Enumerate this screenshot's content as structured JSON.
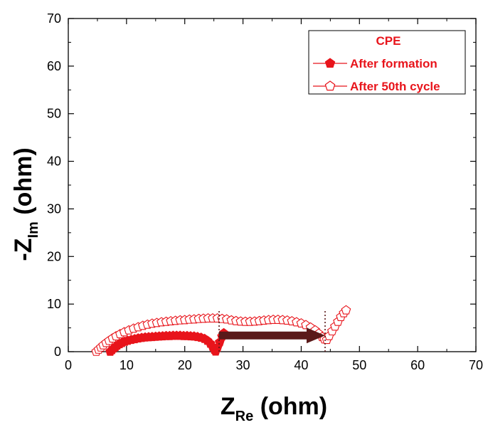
{
  "chart_data": {
    "type": "scatter",
    "xlabel": {
      "main": "Z",
      "sub": "Re",
      "unit": " (ohm)"
    },
    "ylabel": {
      "prefix": "-Z",
      "sub": "Im",
      "unit": " (ohm)"
    },
    "xlim": [
      0,
      70
    ],
    "ylim": [
      0,
      70
    ],
    "xticks": [
      0,
      10,
      20,
      30,
      40,
      50,
      60,
      70
    ],
    "yticks": [
      0,
      10,
      20,
      30,
      40,
      50,
      60,
      70
    ],
    "grid": false,
    "legend": {
      "placement": "top-right",
      "title": "CPE",
      "entries": [
        "After formation",
        "After 50th cycle"
      ]
    },
    "colors": {
      "series": "#e8141b",
      "arrow": "#5a1a1a",
      "marker_line": "#5a1a1a"
    },
    "series": [
      {
        "name": "After formation",
        "marker": "filled-pentagon",
        "points": [
          [
            7.2,
            0
          ],
          [
            7.5,
            0.35
          ],
          [
            7.8,
            0.7
          ],
          [
            8.1,
            1.0
          ],
          [
            8.4,
            1.3
          ],
          [
            8.8,
            1.6
          ],
          [
            9.2,
            1.85
          ],
          [
            9.7,
            2.1
          ],
          [
            10.2,
            2.3
          ],
          [
            10.8,
            2.5
          ],
          [
            11.4,
            2.65
          ],
          [
            12.0,
            2.8
          ],
          [
            12.6,
            2.9
          ],
          [
            13.2,
            3.0
          ],
          [
            13.8,
            3.05
          ],
          [
            14.4,
            3.1
          ],
          [
            15.0,
            3.15
          ],
          [
            15.6,
            3.2
          ],
          [
            16.2,
            3.25
          ],
          [
            16.8,
            3.3
          ],
          [
            17.4,
            3.3
          ],
          [
            18.0,
            3.35
          ],
          [
            18.6,
            3.35
          ],
          [
            19.2,
            3.35
          ],
          [
            19.8,
            3.3
          ],
          [
            20.4,
            3.3
          ],
          [
            21.0,
            3.25
          ],
          [
            21.6,
            3.2
          ],
          [
            22.2,
            3.1
          ],
          [
            22.8,
            2.95
          ],
          [
            23.4,
            2.7
          ],
          [
            23.9,
            2.3
          ],
          [
            24.4,
            1.7
          ],
          [
            24.8,
            1.0
          ],
          [
            25.1,
            0.4
          ],
          [
            25.3,
            0.05
          ],
          [
            25.6,
            0.8
          ],
          [
            26.0,
            2.0
          ],
          [
            26.4,
            3.2
          ],
          [
            26.7,
            3.9
          ]
        ]
      },
      {
        "name": "After 50th cycle",
        "marker": "open-pentagon",
        "points": [
          [
            4.8,
            0
          ],
          [
            5.2,
            0.45
          ],
          [
            5.6,
            0.9
          ],
          [
            6.0,
            1.35
          ],
          [
            6.5,
            1.85
          ],
          [
            7.0,
            2.3
          ],
          [
            7.6,
            2.8
          ],
          [
            8.2,
            3.25
          ],
          [
            8.9,
            3.7
          ],
          [
            9.6,
            4.1
          ],
          [
            10.4,
            4.5
          ],
          [
            11.2,
            4.85
          ],
          [
            12.0,
            5.15
          ],
          [
            12.8,
            5.45
          ],
          [
            13.6,
            5.7
          ],
          [
            14.4,
            5.9
          ],
          [
            15.2,
            6.05
          ],
          [
            16.0,
            6.2
          ],
          [
            16.8,
            6.3
          ],
          [
            17.6,
            6.4
          ],
          [
            18.4,
            6.5
          ],
          [
            19.2,
            6.6
          ],
          [
            20.0,
            6.65
          ],
          [
            20.8,
            6.75
          ],
          [
            21.6,
            6.8
          ],
          [
            22.4,
            6.9
          ],
          [
            23.2,
            6.95
          ],
          [
            24.0,
            7.0
          ],
          [
            24.8,
            7.0
          ],
          [
            25.6,
            7.0
          ],
          [
            26.4,
            6.9
          ],
          [
            27.2,
            6.8
          ],
          [
            28.0,
            6.6
          ],
          [
            28.8,
            6.45
          ],
          [
            29.6,
            6.35
          ],
          [
            30.4,
            6.3
          ],
          [
            31.2,
            6.3
          ],
          [
            32.0,
            6.35
          ],
          [
            32.8,
            6.45
          ],
          [
            33.6,
            6.55
          ],
          [
            34.4,
            6.65
          ],
          [
            35.2,
            6.7
          ],
          [
            36.0,
            6.7
          ],
          [
            36.8,
            6.65
          ],
          [
            37.6,
            6.55
          ],
          [
            38.4,
            6.4
          ],
          [
            39.2,
            6.2
          ],
          [
            40.0,
            5.95
          ],
          [
            40.8,
            5.6
          ],
          [
            41.6,
            5.1
          ],
          [
            42.4,
            4.5
          ],
          [
            43.0,
            3.8
          ],
          [
            43.6,
            3.1
          ],
          [
            44.0,
            2.6
          ],
          [
            44.4,
            2.5
          ],
          [
            44.8,
            3.3
          ],
          [
            45.3,
            4.3
          ],
          [
            45.8,
            5.3
          ],
          [
            46.3,
            6.3
          ],
          [
            46.8,
            7.3
          ],
          [
            47.3,
            8.1
          ],
          [
            47.7,
            8.7
          ]
        ]
      }
    ],
    "annotations": {
      "dotted_lines_x": [
        25.9,
        44.1
      ],
      "dotted_line_top": 8.6,
      "arrow": {
        "from": [
          25.9,
          3.4
        ],
        "to": [
          44.1,
          3.4
        ]
      }
    }
  }
}
